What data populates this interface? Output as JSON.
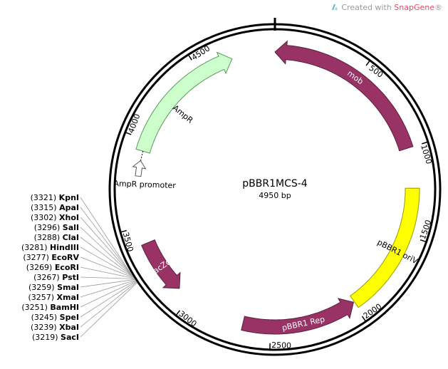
{
  "watermark": {
    "prefix": "Created with",
    "brand": "SnapGene",
    "suffix": "®"
  },
  "plasmid": {
    "name": "pBBR1MCS-4",
    "length": 4950,
    "length_label": "4950 bp"
  },
  "ticks": [
    {
      "bp": 500,
      "label": "500"
    },
    {
      "bp": 1000,
      "label": "1000"
    },
    {
      "bp": 1500,
      "label": "1500"
    },
    {
      "bp": 2000,
      "label": "2000"
    },
    {
      "bp": 2500,
      "label": "2500"
    },
    {
      "bp": 3000,
      "label": "3000"
    },
    {
      "bp": 3500,
      "label": "3500"
    },
    {
      "bp": 4000,
      "label": "4000"
    },
    {
      "bp": 4500,
      "label": "4500"
    }
  ],
  "features": [
    {
      "id": "mob",
      "label": "mob",
      "start": 0,
      "end": 1000,
      "strand": -1,
      "type": "gene",
      "color": "#993366"
    },
    {
      "id": "pbbr1-oriv",
      "label": "pBBR1 oriV",
      "start": 1230,
      "end": 1990,
      "strand": 0,
      "type": "origin",
      "color": "#ffff00"
    },
    {
      "id": "pbbr1-rep",
      "label": "pBBR1 Rep",
      "start": 1995,
      "end": 2660,
      "strand": -1,
      "type": "gene",
      "color": "#993366"
    },
    {
      "id": "lacz-alpha",
      "label": "lacZα",
      "start": 3080,
      "end": 3400,
      "strand": -1,
      "type": "gene",
      "color": "#993366"
    },
    {
      "id": "ampr",
      "label": "AmpR",
      "start": 3935,
      "end": 4700,
      "strand": 1,
      "type": "gene",
      "color": "#ccffcc"
    },
    {
      "id": "ampr-promoter",
      "label": "AmpR promoter",
      "start": 3830,
      "end": 3935,
      "strand": 1,
      "type": "promoter",
      "color": "#ffffff"
    }
  ],
  "restriction_sites": [
    {
      "pos": "(3321)",
      "enzyme": "KpnI"
    },
    {
      "pos": "(3315)",
      "enzyme": "ApaI"
    },
    {
      "pos": "(3302)",
      "enzyme": "XhoI"
    },
    {
      "pos": "(3296)",
      "enzyme": "SalI"
    },
    {
      "pos": "(3288)",
      "enzyme": "ClaI"
    },
    {
      "pos": "(3281)",
      "enzyme": "HindIII"
    },
    {
      "pos": "(3277)",
      "enzyme": "EcoRV"
    },
    {
      "pos": "(3269)",
      "enzyme": "EcoRI"
    },
    {
      "pos": "(3267)",
      "enzyme": "PstI"
    },
    {
      "pos": "(3259)",
      "enzyme": "SmaI"
    },
    {
      "pos": "(3257)",
      "enzyme": "XmaI"
    },
    {
      "pos": "(3251)",
      "enzyme": "BamHI"
    },
    {
      "pos": "(3245)",
      "enzyme": "SpeI"
    },
    {
      "pos": "(3239)",
      "enzyme": "XbaI"
    },
    {
      "pos": "(3219)",
      "enzyme": "SacI"
    }
  ]
}
